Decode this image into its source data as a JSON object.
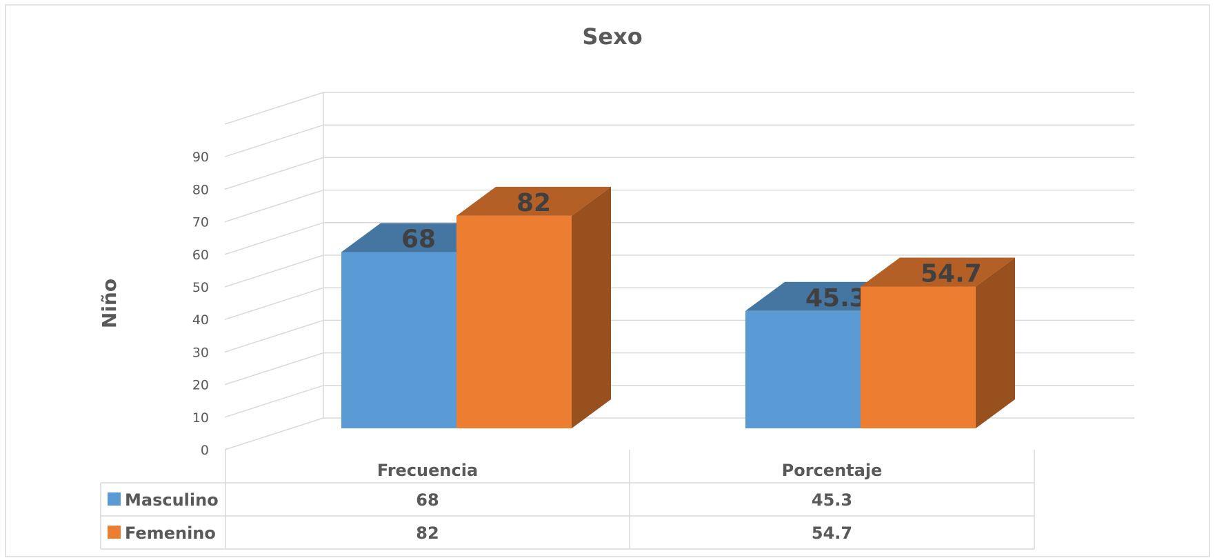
{
  "chart_data": {
    "type": "bar",
    "title": "Sexo",
    "ylabel": "Niño",
    "xlabel": "",
    "categories": [
      "Frecuencia",
      "Porcentaje"
    ],
    "series": [
      {
        "name": "Masculino",
        "values": [
          68,
          45.3
        ],
        "color": "#5B9BD5"
      },
      {
        "name": "Femenino",
        "values": [
          82,
          54.7
        ],
        "color": "#ED7D31"
      }
    ],
    "ylim": [
      0,
      90
    ],
    "yticks": [
      0,
      10,
      20,
      30,
      40,
      50,
      60,
      70,
      80,
      90
    ],
    "grid": true,
    "style": "3d",
    "data_table": true,
    "legend": "data-table"
  }
}
